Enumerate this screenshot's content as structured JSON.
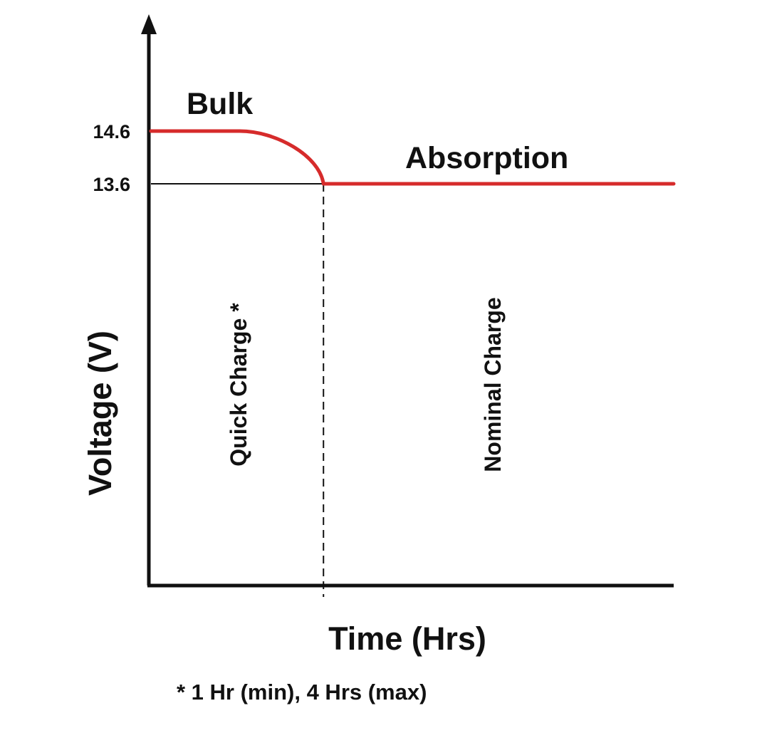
{
  "chart_data": {
    "type": "line",
    "xlabel": "Time (Hrs)",
    "ylabel": "Voltage (V)",
    "y_ticks": [
      "14.6",
      "13.6"
    ],
    "y_tick_values": [
      14.6,
      13.6
    ],
    "series": [
      {
        "name": "",
        "color": "#d62b2b",
        "points": [
          {
            "x": 0.0,
            "y": 14.6
          },
          {
            "x": 0.17,
            "y": 14.6
          },
          {
            "x": 0.22,
            "y": 14.5
          },
          {
            "x": 0.27,
            "y": 14.25
          },
          {
            "x": 0.33,
            "y": 13.6
          },
          {
            "x": 1.0,
            "y": 13.6
          }
        ]
      }
    ],
    "phase_labels": [
      "Bulk",
      "Absorption"
    ],
    "region_labels": [
      "Quick Charge *",
      "Nominal Charge"
    ],
    "footnote": "* 1 Hr (min), 4 Hrs (max)",
    "colors": {
      "curve": "#d62b2b",
      "axis": "#111111"
    }
  }
}
